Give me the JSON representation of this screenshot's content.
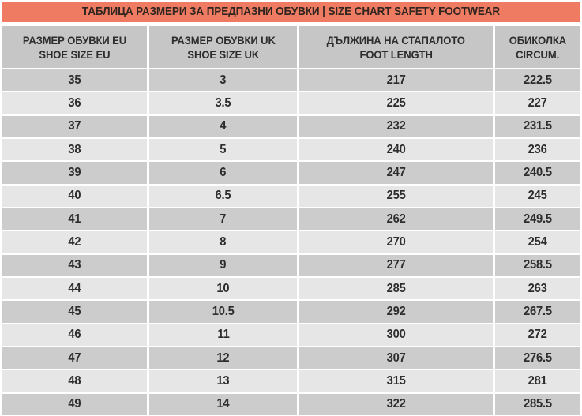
{
  "title": "ТАБЛИЦА РАЗМЕРИ ЗА ПРЕДПАЗНИ ОБУВКИ | SIZE CHART SAFETY FOOTWEAR",
  "colors": {
    "title_bg": "#EE7B62",
    "header_bg": "#C6C6C6",
    "row_dark": "#CCCCCC",
    "row_light": "#E6E6E6",
    "text": "#2D2D2D",
    "background": "#FFFFFF"
  },
  "chart_data": {
    "type": "table",
    "title": "ТАБЛИЦА РАЗМЕРИ ЗА ПРЕДПАЗНИ ОБУВКИ | SIZE CHART SAFETY FOOTWEAR",
    "columns": [
      {
        "bg": "РАЗМЕР ОБУВКИ EU",
        "en": "SHOE SIZE EU"
      },
      {
        "bg": "РАЗМЕР ОБУВКИ UK",
        "en": "SHOE SIZE UK"
      },
      {
        "bg": "ДЪЛЖИНА НА СТАПАЛОТО",
        "en": "FOOT LENGTH"
      },
      {
        "bg": "ОБИКОЛКА",
        "en": "CIRCUM."
      }
    ],
    "rows": [
      [
        "35",
        "3",
        "217",
        "222.5"
      ],
      [
        "36",
        "3.5",
        "225",
        "227"
      ],
      [
        "37",
        "4",
        "232",
        "231.5"
      ],
      [
        "38",
        "5",
        "240",
        "236"
      ],
      [
        "39",
        "6",
        "247",
        "240.5"
      ],
      [
        "40",
        "6.5",
        "255",
        "245"
      ],
      [
        "41",
        "7",
        "262",
        "249.5"
      ],
      [
        "42",
        "8",
        "270",
        "254"
      ],
      [
        "43",
        "9",
        "277",
        "258.5"
      ],
      [
        "44",
        "10",
        "285",
        "263"
      ],
      [
        "45",
        "10.5",
        "292",
        "267.5"
      ],
      [
        "46",
        "11",
        "300",
        "272"
      ],
      [
        "47",
        "12",
        "307",
        "276.5"
      ],
      [
        "48",
        "13",
        "315",
        "281"
      ],
      [
        "49",
        "14",
        "322",
        "285.5"
      ]
    ]
  }
}
